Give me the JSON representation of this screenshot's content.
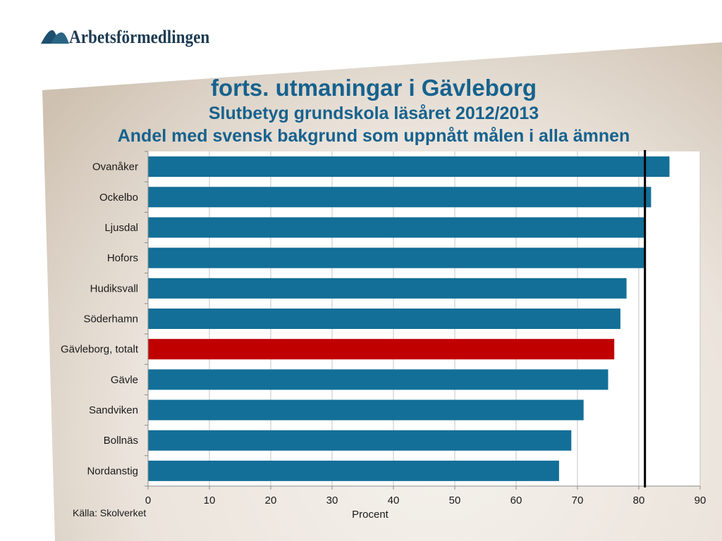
{
  "header": {
    "logo_icon": "arbetsformedlingen-logo-icon",
    "logo_text": "Arbetsförmedlingen"
  },
  "slide": {
    "title": "forts. utmaningar i Gävleborg"
  },
  "chart_data": {
    "type": "bar",
    "orientation": "horizontal",
    "title": "Slutbetyg grundskola läsåret 2012/2013",
    "subtitle": "Andel med svensk bakgrund som uppnått målen i alla ämnen",
    "categories": [
      "Ovanåker",
      "Ockelbo",
      "Ljusdal",
      "Hofors",
      "Hudiksvall",
      "Söderhamn",
      "Gävleborg, totalt",
      "Gävle",
      "Sandviken",
      "Bollnäs",
      "Nordanstig"
    ],
    "values": [
      85,
      82,
      81,
      81,
      78,
      77,
      76,
      75,
      71,
      69,
      67
    ],
    "bar_colors": [
      "#136f97",
      "#136f97",
      "#136f97",
      "#136f97",
      "#136f97",
      "#136f97",
      "#c00000",
      "#136f97",
      "#136f97",
      "#136f97",
      "#136f97"
    ],
    "reference_value": 81,
    "xlabel": "Procent",
    "xlim": [
      0,
      90
    ],
    "xticks": [
      0,
      10,
      20,
      30,
      40,
      50,
      60,
      70,
      80,
      90
    ],
    "grid": true,
    "source": "Källa: Skolverket",
    "colors": {
      "title": "#16628e",
      "reference_line": "#000000",
      "gridline": "#c4c4c4",
      "axis": "#8c8c8c"
    }
  }
}
